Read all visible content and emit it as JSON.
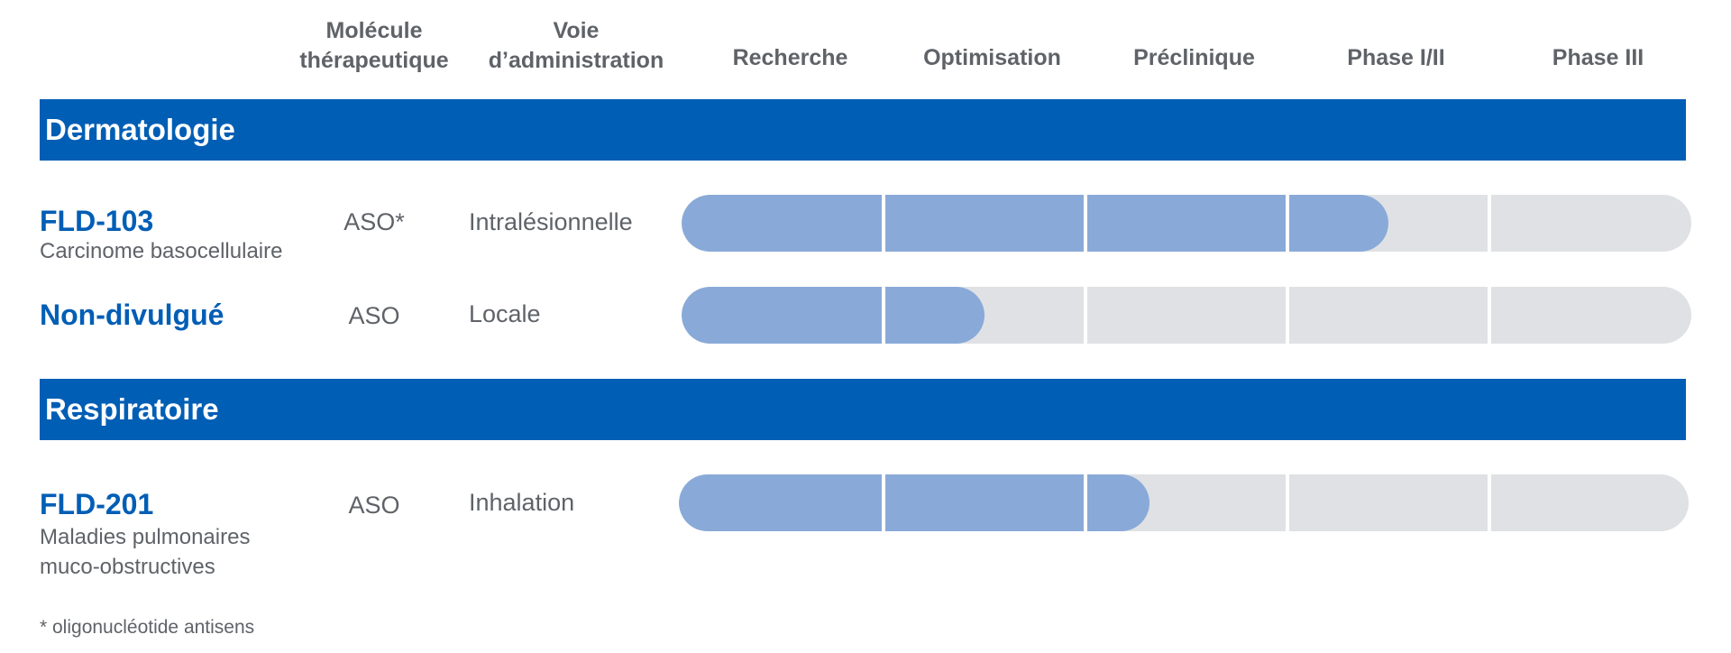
{
  "chart_data": {
    "type": "bar",
    "headers": {
      "molecule": [
        "Molécule",
        "thérapeutique"
      ],
      "voie": [
        "Voie",
        "d’administration"
      ]
    },
    "categories": [
      "Recherche",
      "Optimisation",
      "Préclinique",
      "Phase I/II",
      "Phase III"
    ],
    "sections": [
      {
        "label": "Dermatologie",
        "products": [
          {
            "name": "FLD-103",
            "indication": [
              "Carcinome basocellulaire"
            ],
            "molecule": "ASO*",
            "route": "Intralésionnelle",
            "progress": 3.5
          },
          {
            "name": "Non-divulgué",
            "indication": [],
            "molecule": "ASO",
            "route": "Locale",
            "progress": 1.5
          }
        ]
      },
      {
        "label": "Respiratoire",
        "products": [
          {
            "name": "FLD-201",
            "indication": [
              "Maladies pulmonaires",
              "muco-obstructives"
            ],
            "molecule": "ASO",
            "route": "Inhalation",
            "progress": 2.33
          }
        ]
      }
    ],
    "footnote": "* oligonucléotide antisens",
    "colors": {
      "category_bar": "#005eb5",
      "fill": "#89aad8",
      "track": "#dfe1e4",
      "product_name": "#005eb5"
    }
  }
}
